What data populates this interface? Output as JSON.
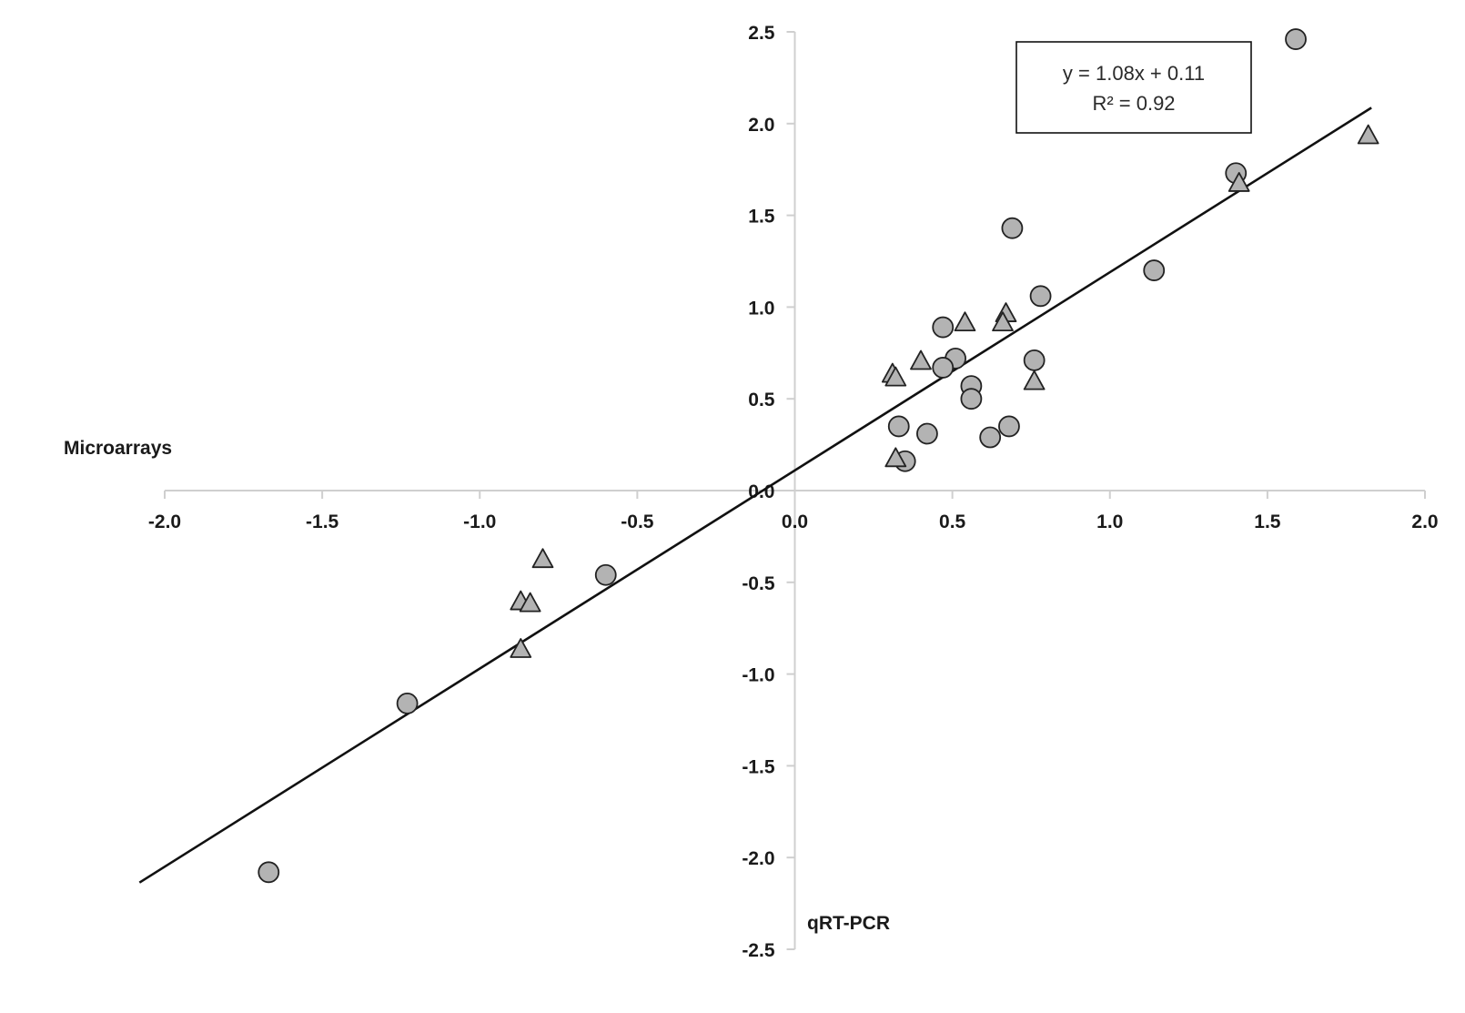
{
  "chart_data": {
    "type": "scatter",
    "xlabel": "qRT-PCR",
    "ylabel": "Microarrays",
    "xlim": [
      -2.0,
      2.0
    ],
    "ylim": [
      -2.5,
      2.5
    ],
    "x_ticks": [
      "-2.0",
      "-1.5",
      "-1.0",
      "-0.5",
      "0.0",
      "0.5",
      "1.0",
      "1.5",
      "2.0"
    ],
    "y_ticks": [
      "2.5",
      "2.0",
      "1.5",
      "1.0",
      "0.5",
      "0.0",
      "-0.5",
      "-1.0",
      "-1.5",
      "-2.0",
      "-2.5"
    ],
    "grid": false,
    "annotation": {
      "equation": "y = 1.08x + 0.11",
      "r_squared": "R² = 0.92"
    },
    "trendline": {
      "slope": 1.08,
      "intercept": 0.11,
      "x_range": [
        -2.08,
        1.83
      ]
    },
    "series": [
      {
        "marker": "circle",
        "color": "#b3b3b3",
        "points": [
          [
            1.59,
            2.46
          ],
          [
            1.4,
            1.73
          ],
          [
            1.14,
            1.2
          ],
          [
            0.69,
            1.43
          ],
          [
            0.78,
            1.06
          ],
          [
            0.47,
            0.89
          ],
          [
            0.51,
            0.72
          ],
          [
            0.47,
            0.67
          ],
          [
            0.56,
            0.57
          ],
          [
            0.56,
            0.5
          ],
          [
            0.76,
            0.71
          ],
          [
            0.33,
            0.35
          ],
          [
            0.42,
            0.31
          ],
          [
            0.62,
            0.29
          ],
          [
            0.68,
            0.35
          ],
          [
            0.35,
            0.16
          ],
          [
            -0.6,
            -0.46
          ],
          [
            -1.23,
            -1.16
          ],
          [
            -1.67,
            -2.08
          ]
        ]
      },
      {
        "marker": "triangle",
        "color": "#b3b3b3",
        "points": [
          [
            1.82,
            1.93
          ],
          [
            1.41,
            1.67
          ],
          [
            0.54,
            0.91
          ],
          [
            0.67,
            0.96
          ],
          [
            0.66,
            0.91
          ],
          [
            0.4,
            0.7
          ],
          [
            0.31,
            0.63
          ],
          [
            0.32,
            0.61
          ],
          [
            0.76,
            0.59
          ],
          [
            0.32,
            0.17
          ],
          [
            -0.8,
            -0.38
          ],
          [
            -0.87,
            -0.61
          ],
          [
            -0.84,
            -0.62
          ],
          [
            -0.87,
            -0.87
          ]
        ]
      }
    ]
  }
}
